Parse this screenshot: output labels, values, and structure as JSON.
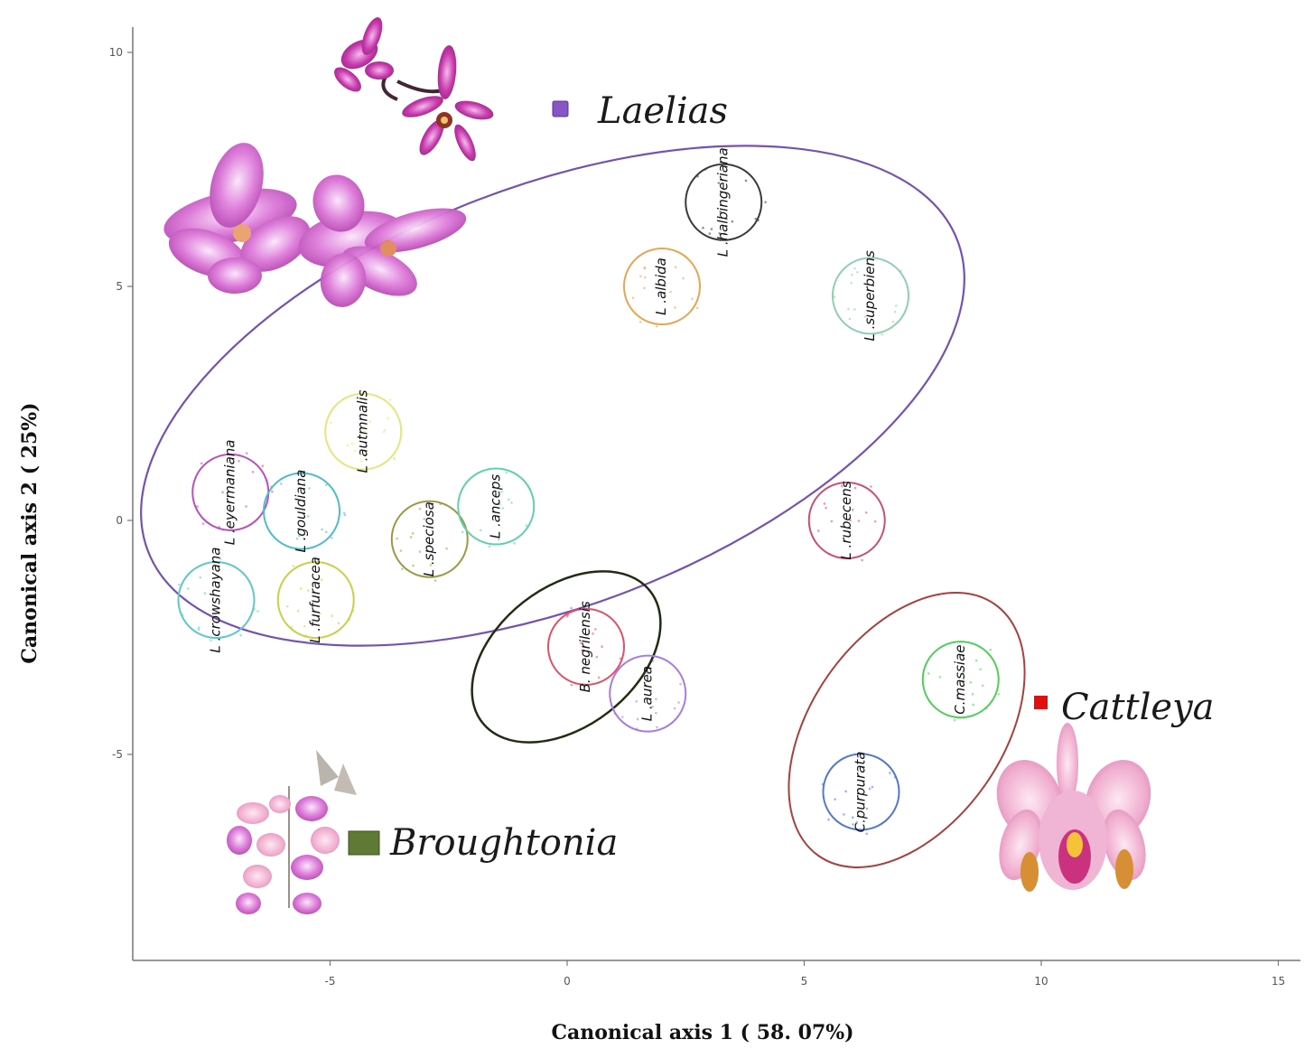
{
  "chart_data": {
    "type": "scatter",
    "title": "",
    "xlabel": "Canonical axis 1 ( 58. 07%)",
    "ylabel": "Canonical axis 2 ( 25%)",
    "xlim": [
      -9,
      15.5
    ],
    "ylim": [
      -9.3,
      10.6
    ],
    "xticks": [
      -5,
      0,
      5,
      10,
      15
    ],
    "yticks": [
      -5,
      0,
      5,
      10
    ],
    "xtick_labels": [
      "-5",
      "0",
      "5",
      "10",
      "15"
    ],
    "ytick_labels": [
      "-5",
      "0",
      "5",
      "10"
    ],
    "grid": false,
    "species": [
      {
        "name": "L .halbingeriana",
        "center": [
          3.3,
          6.8
        ],
        "radius": 0.8,
        "color": "#3a3a3a"
      },
      {
        "name": "L .albida",
        "center": [
          2.0,
          5.0
        ],
        "radius": 0.8,
        "color": "#e6a550"
      },
      {
        "name": "L .superbiens",
        "center": [
          6.4,
          4.8
        ],
        "radius": 0.8,
        "color": "#8fd0b0"
      },
      {
        "name": "L .autmnalis",
        "center": [
          -4.3,
          1.9
        ],
        "radius": 0.8,
        "color": "#e2e878"
      },
      {
        "name": "L .eyermaniana",
        "center": [
          -7.1,
          0.6
        ],
        "radius": 0.8,
        "color": "#b94fbf"
      },
      {
        "name": "L .gouldiana",
        "center": [
          -5.6,
          0.2
        ],
        "radius": 0.8,
        "color": "#4fbcc9"
      },
      {
        "name": "L .speciosa",
        "center": [
          -2.9,
          -0.4
        ],
        "radius": 0.8,
        "color": "#9a9a45"
      },
      {
        "name": "L .anceps",
        "center": [
          -1.5,
          0.3
        ],
        "radius": 0.8,
        "color": "#5fd0b0"
      },
      {
        "name": "L .rubecens",
        "center": [
          5.9,
          0.0
        ],
        "radius": 0.8,
        "color": "#c94f74"
      },
      {
        "name": "L .crowshayana",
        "center": [
          -7.4,
          -1.7
        ],
        "radius": 0.8,
        "color": "#5fc8c8"
      },
      {
        "name": "L .furfuracea",
        "center": [
          -5.3,
          -1.7
        ],
        "radius": 0.8,
        "color": "#c8d04a"
      },
      {
        "name": "B. negrilensis",
        "center": [
          0.4,
          -2.7
        ],
        "radius": 0.8,
        "color": "#e0506a"
      },
      {
        "name": "L .aurea",
        "center": [
          1.7,
          -3.7
        ],
        "radius": 0.8,
        "color": "#a77ce0"
      },
      {
        "name": "C.massiae",
        "center": [
          8.3,
          -3.4
        ],
        "radius": 0.8,
        "color": "#4fcf5a"
      },
      {
        "name": "C.purpurata",
        "center": [
          6.2,
          -5.8
        ],
        "radius": 0.8,
        "color": "#4f79d4"
      }
    ],
    "groups": [
      {
        "name": "Laelias",
        "color": "#7a52b8"
      },
      {
        "name": "Broughtonia",
        "color": "#5a7a30"
      },
      {
        "name": "Cattleya",
        "color": "#e01010"
      }
    ]
  }
}
